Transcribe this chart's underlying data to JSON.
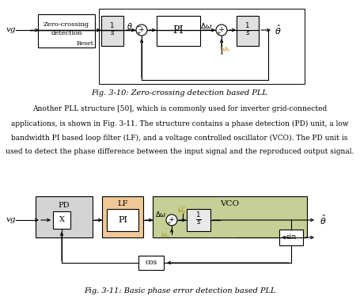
{
  "fig_width": 4.55,
  "fig_height": 3.79,
  "dpi": 100,
  "bg_color": "#ffffff",
  "fig10_caption": "Fig. 3-10: Zero-crossing detection based PLL",
  "fig11_caption": "Fig. 3-11: Basic phase error detection based PLL",
  "para_lines": [
    "Another PLL structure [50], which is commonly used for inverter grid-connected",
    "applications, is shown in Fig. 3-11. The structure contains a phase detection (PD) unit, a low",
    "bandwidth PI based loop filter (LF), and a voltage controlled oscillator (VCO). The PD unit is",
    "used to detect the phase difference between the input signal and the reproduced output signal."
  ],
  "omega0_color": "#b8860b",
  "omega_g_color": "#b8860b"
}
